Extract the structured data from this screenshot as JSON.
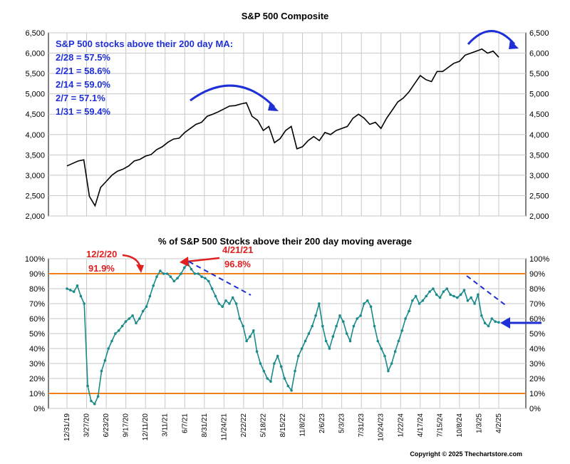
{
  "copyright": "Copyright © 2025 Thechartstore.com",
  "colors": {
    "price_line": "#000000",
    "breadth_line": "#1a8a8a",
    "ref_line": "#f07f20",
    "annotation_blue": "#1f2fd6",
    "annotation_red": "#e02020",
    "grid": "#c8c8c8"
  },
  "chart_data": [
    {
      "type": "line",
      "title": "S&P 500 Composite",
      "ylim": [
        2000,
        6500
      ],
      "y_ticks": [
        "2,000",
        "2,500",
        "3,000",
        "3,500",
        "4,000",
        "4,500",
        "5,000",
        "5,500",
        "6,000",
        "6,500"
      ],
      "grid": true,
      "annotation_lines": [
        "S&P 500 stocks above their 200 day MA:",
        "2/28 = 57.5%",
        "2/21 = 58.6%",
        "2/14 = 59.0%",
        "2/7 = 57.1%",
        "1/31 = 59.4%"
      ],
      "series": [
        {
          "values": [
            3230,
            3290,
            3350,
            3380,
            2480,
            2250,
            2700,
            2850,
            3000,
            3100,
            3150,
            3230,
            3350,
            3390,
            3470,
            3510,
            3630,
            3700,
            3810,
            3890,
            3910,
            4050,
            4150,
            4250,
            4300,
            4450,
            4500,
            4560,
            4630,
            4700,
            4710,
            4750,
            4780,
            4450,
            4350,
            4100,
            4200,
            3800,
            3900,
            4100,
            4200,
            3650,
            3700,
            3850,
            3950,
            3850,
            4050,
            4000,
            4100,
            4150,
            4200,
            4400,
            4500,
            4400,
            4250,
            4300,
            4150,
            4400,
            4600,
            4800,
            4900,
            5050,
            5250,
            5450,
            5350,
            5300,
            5550,
            5550,
            5650,
            5750,
            5800,
            5950,
            6000,
            6050,
            6100,
            6000,
            6050,
            5900
          ]
        }
      ]
    },
    {
      "type": "line",
      "title": "% of S&P 500 Stocks above their 200 day moving average",
      "ylim": [
        0,
        100
      ],
      "y_ticks": [
        "0%",
        "10%",
        "20%",
        "30%",
        "40%",
        "50%",
        "60%",
        "70%",
        "80%",
        "90%",
        "100%"
      ],
      "grid": true,
      "reference_lines": [
        90,
        10
      ],
      "x_ticks": [
        "12/31/19",
        "3/27/20",
        "6/23/20",
        "9/17/20",
        "12/11/20",
        "3/11/21",
        "6/7/21",
        "8/31/21",
        "11/24/21",
        "2/22/22",
        "5/18/22",
        "8/15/22",
        "11/8/22",
        "2/6/23",
        "5/3/23",
        "7/31/23",
        "10/24/23",
        "1/22/24",
        "4/17/24",
        "7/15/24",
        "10/8/24",
        "1/3/25",
        "4/2/25"
      ],
      "annotations": [
        {
          "label": "12/2/20",
          "value": "91.9%"
        },
        {
          "label": "4/21/21",
          "value": "96.8%"
        }
      ],
      "series": [
        {
          "values": [
            80,
            79,
            78,
            82,
            75,
            70,
            15,
            5,
            3,
            8,
            25,
            32,
            40,
            45,
            50,
            52,
            55,
            58,
            60,
            62,
            57,
            60,
            65,
            68,
            75,
            82,
            88,
            91.9,
            90,
            90,
            88,
            85,
            87,
            90,
            94,
            96.8,
            93,
            90,
            90,
            88,
            87,
            85,
            80,
            75,
            70,
            68,
            72,
            70,
            74,
            70,
            60,
            55,
            45,
            48,
            52,
            38,
            30,
            25,
            20,
            18,
            30,
            35,
            28,
            20,
            15,
            12,
            25,
            35,
            40,
            45,
            50,
            55,
            62,
            70,
            55,
            45,
            40,
            48,
            55,
            62,
            58,
            50,
            45,
            55,
            60,
            62,
            70,
            72,
            68,
            55,
            45,
            40,
            35,
            25,
            30,
            38,
            45,
            52,
            60,
            65,
            72,
            75,
            70,
            72,
            75,
            78,
            80,
            76,
            74,
            78,
            80,
            76,
            75,
            74,
            76,
            79,
            72,
            74,
            70,
            76,
            62,
            57,
            55,
            60,
            58,
            57.5
          ]
        }
      ]
    }
  ]
}
